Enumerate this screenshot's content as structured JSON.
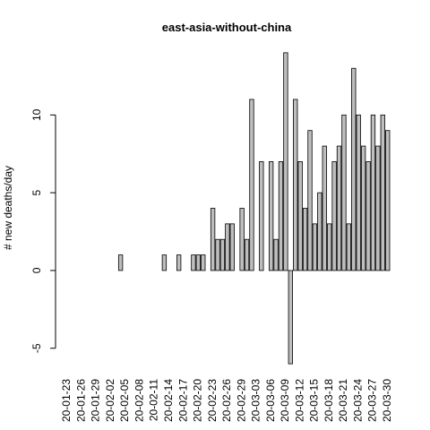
{
  "chart_data": {
    "type": "bar",
    "title": "east-asia-without-china",
    "y_label": "# new deaths/day",
    "categories": [
      "20-01-23",
      null,
      null,
      "20-01-26",
      null,
      null,
      "20-01-29",
      null,
      null,
      "20-02-02",
      null,
      null,
      "20-02-05",
      null,
      null,
      "20-02-08",
      null,
      null,
      "20-02-11",
      null,
      null,
      "20-02-14",
      null,
      null,
      "20-02-17",
      null,
      null,
      "20-02-20",
      null,
      null,
      "20-02-23",
      null,
      null,
      "20-02-26",
      null,
      null,
      "20-02-29",
      null,
      null,
      "20-03-03",
      null,
      null,
      "20-03-06",
      null,
      null,
      "20-03-09",
      null,
      null,
      "20-03-12",
      null,
      null,
      "20-03-15",
      null,
      null,
      "20-03-18",
      null,
      null,
      "20-03-21",
      null,
      null,
      "20-03-24",
      null,
      null,
      "20-03-27",
      null,
      null,
      "20-03-30"
    ],
    "values": [
      0,
      0,
      0,
      0,
      0,
      0,
      0,
      0,
      0,
      0,
      0,
      1,
      0,
      0,
      0,
      0,
      0,
      0,
      0,
      0,
      1,
      0,
      0,
      1,
      0,
      0,
      1,
      1,
      1,
      0,
      4,
      2,
      2,
      3,
      3,
      0,
      4,
      2,
      11,
      0,
      7,
      0,
      7,
      2,
      7,
      14,
      -6,
      11,
      7,
      4,
      9,
      3,
      5,
      8,
      3,
      7,
      8,
      10,
      3,
      13,
      10,
      8,
      7,
      10,
      8,
      10,
      9
    ],
    "color": "#bebebe",
    "ylim": [
      -6.8,
      14.8
    ],
    "yticks": [
      -5,
      0,
      5,
      10
    ]
  }
}
